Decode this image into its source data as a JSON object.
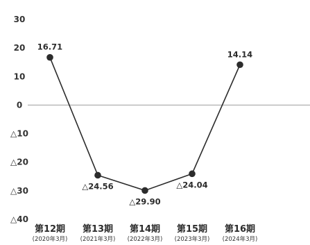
{
  "chart_data": {
    "type": "line",
    "title": "",
    "xlabel": "",
    "ylabel": "",
    "ylim": [
      -40,
      30
    ],
    "yticks": [
      {
        "value": 30,
        "label": "30"
      },
      {
        "value": 20,
        "label": "20"
      },
      {
        "value": 10,
        "label": "10"
      },
      {
        "value": 0,
        "label": "0"
      },
      {
        "value": -10,
        "label": "△10"
      },
      {
        "value": -20,
        "label": "△20"
      },
      {
        "value": -30,
        "label": "△30"
      },
      {
        "value": -40,
        "label": "△40"
      }
    ],
    "categories": [
      "第12期",
      "第13期",
      "第14期",
      "第15期",
      "第16期"
    ],
    "category_sublabels": [
      "(2020年3月)",
      "(2021年3月)",
      "(2022年3月)",
      "(2023年3月)",
      "(2024年3月)"
    ],
    "values": [
      16.71,
      -24.56,
      -29.9,
      -24.04,
      14.14
    ],
    "data_labels": [
      "16.71",
      "△24.56",
      "△29.90",
      "△24.04",
      "14.14"
    ],
    "legend": "none",
    "grid": false,
    "zero_line": true,
    "colors": {
      "line": "#2c2c2c",
      "marker": "#2c2c2c",
      "zero_line": "#b5b5b5",
      "text": "#333333"
    }
  }
}
